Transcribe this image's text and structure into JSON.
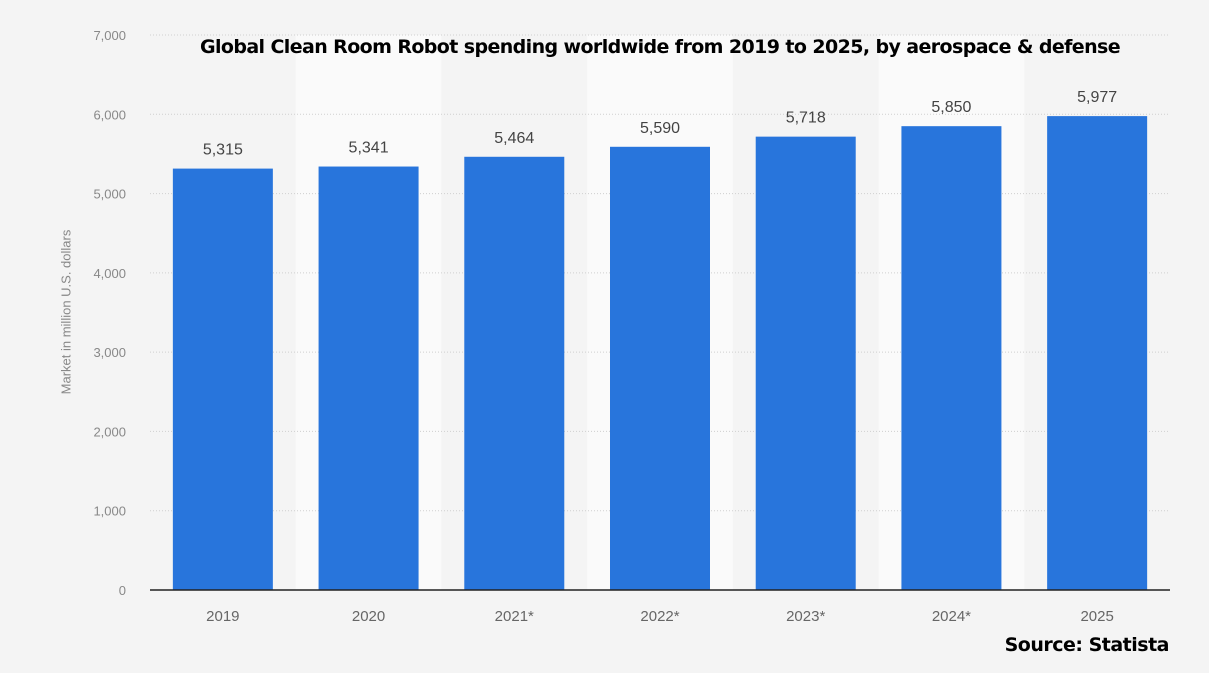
{
  "chart_data": {
    "type": "bar",
    "title": "Global Clean Room Robot spending worldwide from 2019 to 2025, by aerospace & defense",
    "xlabel": "",
    "ylabel": "Market in million U.S. dollars",
    "categories": [
      "2019",
      "2020",
      "2021*",
      "2022*",
      "2023*",
      "2024*",
      "2025"
    ],
    "values": [
      5315,
      5341,
      5464,
      5590,
      5718,
      5850,
      5977
    ],
    "data_labels": [
      "5,315",
      "5,341",
      "5,464",
      "5,590",
      "5,718",
      "5,850",
      "5,977"
    ],
    "ylim": [
      0,
      7000
    ],
    "yticks": [
      0,
      1000,
      2000,
      3000,
      4000,
      5000,
      6000,
      7000
    ],
    "ytick_labels": [
      "0",
      "1,000",
      "2,000",
      "3,000",
      "4,000",
      "5,000",
      "6,000",
      "7,000"
    ],
    "grid": true,
    "bar_color": "#2875dc",
    "source": "Source: Statista"
  }
}
